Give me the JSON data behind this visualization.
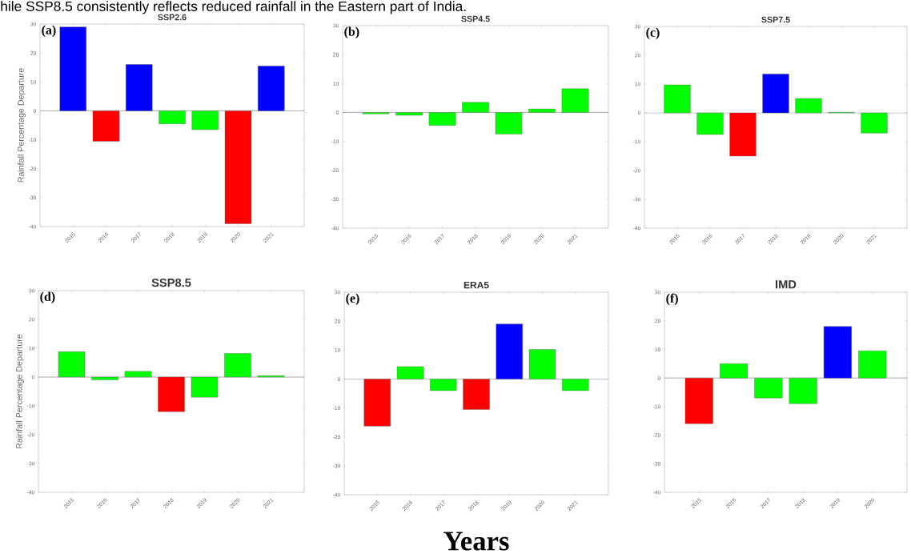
{
  "chart_data": [
    {
      "type": "bar",
      "title": "SSP2.6",
      "ylabel": "Rainfall Percentage Departure",
      "annotations": [
        "(a)",
        "hile SSP8.5 consistently reflects reduced rainfall in the Eastern part of India."
      ],
      "categories": [
        "2015",
        "2016",
        "2017",
        "2018",
        "2019",
        "2020",
        "2021"
      ],
      "values": [
        29,
        -10.5,
        16,
        -4.5,
        -6.5,
        -39,
        15.5
      ],
      "colors": [
        "#0000ff",
        "#ff0000",
        "#0000ff",
        "#00ff00",
        "#00ff00",
        "#ff0000",
        "#0000ff"
      ],
      "ylim": [
        -40,
        30
      ],
      "yticks": [
        -40,
        -30,
        -20,
        -10,
        0,
        10,
        20,
        30
      ],
      "ref_lines": [
        {
          "axis": "y",
          "value": 0,
          "color": "#808080"
        }
      ]
    },
    {
      "type": "bar",
      "title": "SSP4.5",
      "annotations": [
        "(b)"
      ],
      "categories": [
        "2015",
        "2016",
        "2017",
        "2018",
        "2019",
        "2020",
        "2021"
      ],
      "values": [
        -0.5,
        -1,
        -4.5,
        3.5,
        -7.5,
        1.2,
        8.2
      ],
      "colors": [
        "#00ff00",
        "#00ff00",
        "#00ff00",
        "#00ff00",
        "#00ff00",
        "#00ff00",
        "#00ff00"
      ],
      "ylim": [
        -40,
        30
      ],
      "yticks": [
        -40,
        -30,
        -20,
        -10,
        0,
        10,
        20,
        30
      ],
      "ref_lines": [
        {
          "axis": "y",
          "value": 0,
          "color": "#808080"
        }
      ]
    },
    {
      "type": "bar",
      "title": "SSP7.5",
      "annotations": [
        "(c)"
      ],
      "categories": [
        "2015",
        "2016",
        "2017",
        "2018",
        "2019",
        "2020",
        "2021"
      ],
      "values": [
        9.7,
        -7.5,
        -15,
        13.5,
        5,
        0.2,
        -7
      ],
      "colors": [
        "#00ff00",
        "#00ff00",
        "#ff0000",
        "#0000ff",
        "#00ff00",
        "#00ff00",
        "#00ff00"
      ],
      "ylim": [
        -40,
        30
      ],
      "yticks": [
        -40,
        -30,
        -20,
        -10,
        0,
        10,
        20,
        30
      ],
      "ref_lines": [
        {
          "axis": "y",
          "value": 0,
          "color": "#808080"
        }
      ]
    },
    {
      "type": "bar",
      "title": "SSP8.5",
      "ylabel": "Rainfall Percentage Departure",
      "annotations": [
        "(d)"
      ],
      "categories": [
        "2015",
        "2016",
        "2017",
        "2018",
        "2019",
        "2020",
        "2021"
      ],
      "values": [
        8.8,
        -1,
        2,
        -12,
        -7,
        8.2,
        0.5
      ],
      "colors": [
        "#00ff00",
        "#00ff00",
        "#00ff00",
        "#ff0000",
        "#00ff00",
        "#00ff00",
        "#00ff00"
      ],
      "ylim": [
        -40,
        30
      ],
      "yticks": [
        -40,
        -30,
        -20,
        -10,
        0,
        10,
        20,
        30
      ],
      "ref_lines": [
        {
          "axis": "y",
          "value": 0,
          "color": "#808080"
        }
      ]
    },
    {
      "type": "bar",
      "title": "ERA5",
      "xlabel": "Years",
      "annotations": [
        "(e)"
      ],
      "categories": [
        "2015",
        "2016",
        "2017",
        "2018",
        "2019",
        "2020",
        "2021"
      ],
      "values": [
        -16.3,
        4.3,
        -4,
        -10.5,
        19,
        10.2,
        -4
      ],
      "colors": [
        "#ff0000",
        "#00ff00",
        "#00ff00",
        "#ff0000",
        "#0000ff",
        "#00ff00",
        "#00ff00"
      ],
      "ylim": [
        -40,
        30
      ],
      "yticks": [
        -40,
        -30,
        -20,
        -10,
        0,
        10,
        20,
        30
      ],
      "ref_lines": [
        {
          "axis": "y",
          "value": 0,
          "color": "#808080"
        }
      ]
    },
    {
      "type": "bar",
      "title": "IMD",
      "annotations": [
        "(f)"
      ],
      "categories": [
        "2015",
        "2016",
        "2017",
        "2018",
        "2019",
        "2020"
      ],
      "values": [
        -16,
        5,
        -7,
        -9,
        18,
        9.5
      ],
      "colors": [
        "#ff0000",
        "#00ff00",
        "#00ff00",
        "#00ff00",
        "#0000ff",
        "#00ff00"
      ],
      "ylim": [
        -40,
        30
      ],
      "yticks": [
        -40,
        -30,
        -20,
        -10,
        0,
        10,
        20,
        30
      ],
      "ref_lines": [
        {
          "axis": "y",
          "value": 0,
          "color": "#808080"
        }
      ]
    }
  ]
}
